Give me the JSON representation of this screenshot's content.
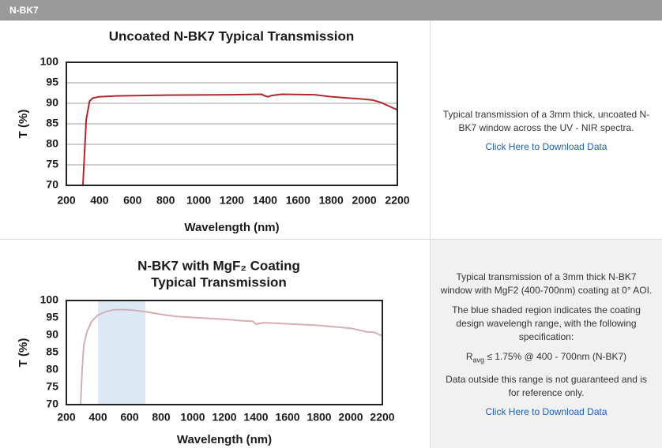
{
  "header": {
    "title": "N-BK7"
  },
  "chart_data": [
    {
      "type": "line",
      "title": [
        "Uncoated N-BK7 Typical Transmission"
      ],
      "x_label": "Wavelength (nm)",
      "y_label": "T (%)",
      "x": [
        300,
        310,
        320,
        340,
        360,
        400,
        500,
        800,
        1200,
        1380,
        1400,
        1420,
        1440,
        1500,
        1700,
        1800,
        1900,
        2000,
        2050,
        2100,
        2150,
        2200
      ],
      "values": [
        70,
        78,
        86,
        90.5,
        91.3,
        91.6,
        91.8,
        92,
        92.1,
        92.2,
        91.8,
        91.6,
        91.9,
        92.2,
        92.1,
        91.6,
        91.3,
        91,
        90.8,
        90.2,
        89.3,
        88.4
      ],
      "color": "#b3262b",
      "xlim": [
        200,
        2200
      ],
      "xticks": [
        200,
        400,
        600,
        800,
        1000,
        1200,
        1400,
        1600,
        1800,
        2000,
        2200
      ],
      "ylim": [
        70,
        100
      ],
      "yticks": [
        70,
        75,
        80,
        85,
        90,
        95,
        100
      ],
      "grid": true
    },
    {
      "type": "line",
      "title": [
        "N-BK7 with MgF₂ Coating",
        "Typical Transmission"
      ],
      "x_label": "Wavelength (nm)",
      "y_label": "T (%)",
      "x": [
        290,
        300,
        310,
        330,
        360,
        400,
        450,
        500,
        550,
        600,
        700,
        800,
        900,
        1000,
        1200,
        1300,
        1380,
        1400,
        1450,
        1600,
        1800,
        2000,
        2100,
        2150,
        2200
      ],
      "values": [
        70,
        80,
        87,
        91,
        94,
        95.8,
        96.8,
        97.3,
        97.4,
        97.3,
        96.8,
        96,
        95.4,
        95.1,
        94.6,
        94.2,
        94,
        93.2,
        93.6,
        93.3,
        92.8,
        92,
        91,
        90.8,
        89.8
      ],
      "color": "#d5adb3",
      "shaded_region": [
        400,
        700
      ],
      "shaded_color": "#dce9f5",
      "xlim": [
        200,
        2200
      ],
      "xticks": [
        200,
        400,
        600,
        800,
        1000,
        1200,
        1400,
        1600,
        1800,
        2000,
        2200
      ],
      "ylim": [
        70,
        100
      ],
      "yticks": [
        70,
        75,
        80,
        85,
        90,
        95,
        100
      ],
      "grid": false
    }
  ],
  "panels": [
    {
      "paragraphs": [
        "Typical transmission of a 3mm thick, uncoated N-BK7 window across the UV - NIR spectra."
      ],
      "link": "Click Here to Download Data"
    },
    {
      "paragraphs": [
        "Typical transmission of a 3mm thick N-BK7 window with MgF2 (400-700nm) coating at 0° AOI.",
        "The blue shaded region indicates the coating design wavelengh range, with the following specification:"
      ],
      "spec": {
        "symbol": "R",
        "sub": "avg",
        "rest": " ≤ 1.75% @ 400 - 700nm (N-BK7)"
      },
      "note": "Data outside this range is not guaranteed and is for reference only.",
      "link": "Click Here to Download Data"
    }
  ]
}
